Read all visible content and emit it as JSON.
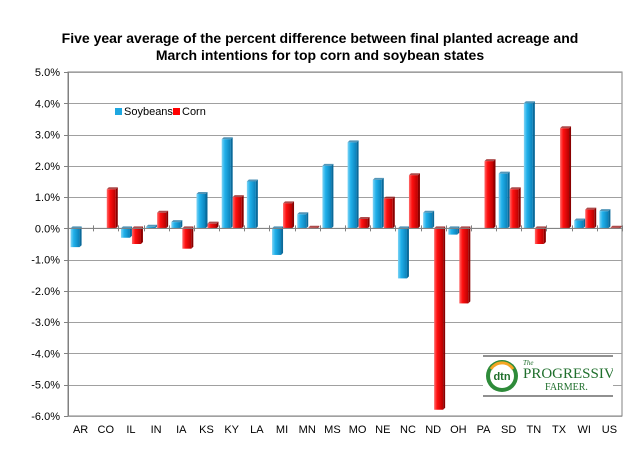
{
  "chart_data": {
    "type": "bar",
    "title_line1": "Five year average of the percent difference between final planted acreage and",
    "title_line2": "March intentions for top corn and soybean  states",
    "categories": [
      "AR",
      "CO",
      "IL",
      "IN",
      "IA",
      "KS",
      "KY",
      "LA",
      "MI",
      "MN",
      "MS",
      "MO",
      "NE",
      "NC",
      "ND",
      "OH",
      "PA",
      "SD",
      "TN",
      "TX",
      "WI",
      "US"
    ],
    "series": [
      {
        "name": "Soybeans",
        "color": "#1ea7e0",
        "values": [
          -0.6,
          null,
          -0.3,
          0.05,
          0.2,
          1.1,
          2.85,
          1.5,
          -0.85,
          0.45,
          2.0,
          2.75,
          1.55,
          -1.6,
          0.5,
          -0.2,
          null,
          1.75,
          4.0,
          null,
          0.25,
          0.55
        ]
      },
      {
        "name": "Corn",
        "color": "#ff0000",
        "values": [
          null,
          1.25,
          -0.5,
          0.5,
          -0.65,
          0.15,
          1.0,
          null,
          0.8,
          0.02,
          null,
          0.3,
          0.95,
          1.7,
          -5.8,
          -2.4,
          2.15,
          1.25,
          -0.5,
          3.2,
          0.6,
          0.02
        ]
      }
    ],
    "ylim": [
      -6.0,
      5.0
    ],
    "yticks": [
      -6,
      -5,
      -4,
      -3,
      -2,
      -1,
      0,
      1,
      2,
      3,
      4,
      5
    ],
    "ytick_labels": [
      "-6.0%",
      "-5.0%",
      "-4.0%",
      "-3.0%",
      "-2.0%",
      "-1.0%",
      "0.0%",
      "1.0%",
      "2.0%",
      "3.0%",
      "4.0%",
      "5.0%"
    ],
    "grid": true,
    "legend_position": "upper-left inside plot"
  },
  "logo": {
    "mark": "dtn",
    "line1": "The",
    "line2": "PROGRESSIVE",
    "line3": "FARMER."
  }
}
